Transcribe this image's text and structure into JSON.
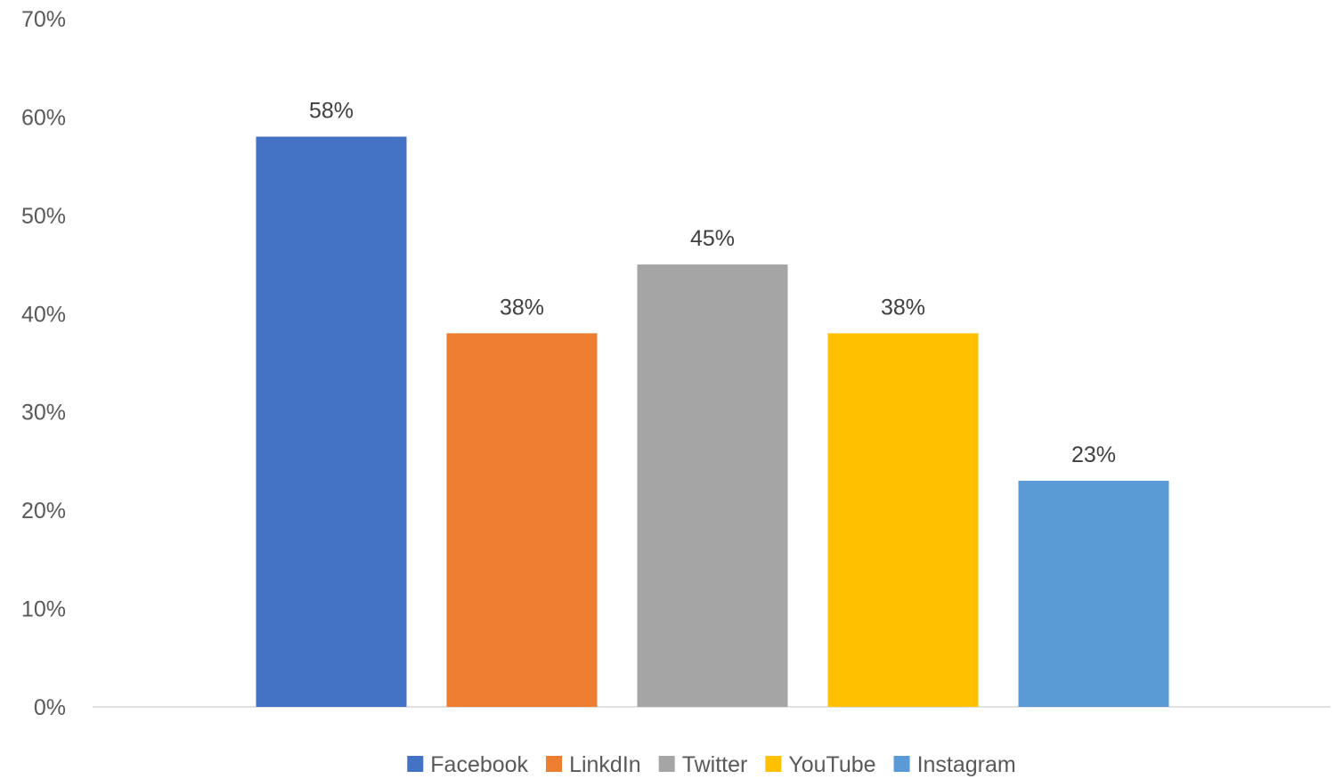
{
  "chart_data": {
    "type": "bar",
    "title": "",
    "xlabel": "",
    "ylabel": "",
    "categories": [
      "Facebook",
      "LinkdIn",
      "Twitter",
      "YouTube",
      "Instagram"
    ],
    "values": [
      58,
      38,
      45,
      38,
      23
    ],
    "data_labels": [
      "58%",
      "38%",
      "45%",
      "38%",
      "23%"
    ],
    "colors": [
      "#4472C4",
      "#ED7D31",
      "#A5A5A5",
      "#FFC000",
      "#5B9BD5"
    ],
    "ylim": [
      0,
      70
    ],
    "yticks": [
      0,
      10,
      20,
      30,
      40,
      50,
      60,
      70
    ],
    "ytick_labels": [
      "0%",
      "10%",
      "20%",
      "30%",
      "40%",
      "50%",
      "60%",
      "70%"
    ],
    "grid": false,
    "legend": {
      "placement": "bottom",
      "entries": [
        "Facebook",
        "LinkdIn",
        "Twitter",
        "YouTube",
        "Instagram"
      ]
    }
  }
}
